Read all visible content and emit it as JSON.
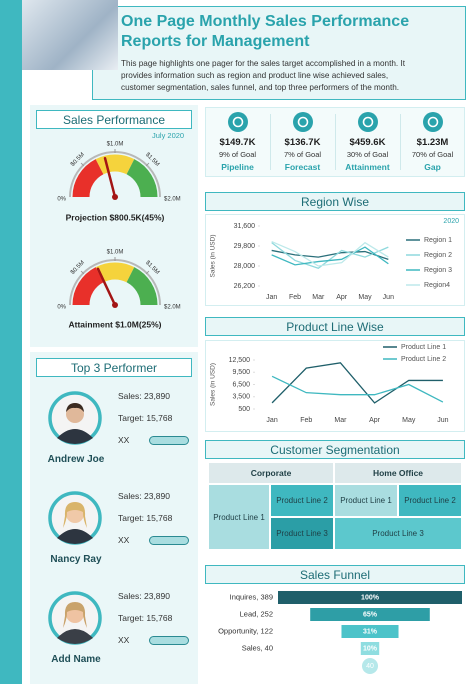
{
  "header": {
    "title": [
      "One Page Monthly Sales Performance",
      "Reports for Management"
    ],
    "description": [
      "This page highlights one pager for the sales target accomplished in a month. It",
      "provides information such as region and product line wise achieved sales,",
      "customer segmentation, sales funnel, and top three performers of the month."
    ]
  },
  "sales_performance": {
    "title": "Sales Performance",
    "period": "July 2020",
    "gauges": [
      {
        "scale": [
          "0%",
          "$0.5M",
          "$1.0M",
          "$1.5M",
          "$2.0M"
        ],
        "caption": "Projection $800.5K(45%)"
      },
      {
        "scale": [
          "0%",
          "$0.5M",
          "$1.0M",
          "$1.5M",
          "$2.0M"
        ],
        "caption": "Attainment $1.0M(25%)"
      }
    ]
  },
  "kpis": [
    {
      "value": "$149.7K",
      "goal": "9% of Goal",
      "label": "Pipeline"
    },
    {
      "value": "$136.7K",
      "goal": "7% of Goal",
      "label": "Forecast"
    },
    {
      "value": "$459.6K",
      "goal": "30% of Goal",
      "label": "Attainment"
    },
    {
      "value": "$1.23M",
      "goal": "70% of Goal",
      "label": "Gap"
    }
  ],
  "top_performers": {
    "title": "Top 3 Performer",
    "people": [
      {
        "name": "Andrew Joe",
        "sales": "Sales: 23,890",
        "target": "Target: 15,768",
        "note": "XX"
      },
      {
        "name": "Nancy Ray",
        "sales": "Sales: 23,890",
        "target": "Target: 15,768",
        "note": "XX"
      },
      {
        "name": "Add Name",
        "sales": "Sales: 23,890",
        "target": "Target: 15,768",
        "note": "XX"
      }
    ]
  },
  "customer_segmentation": {
    "title": "Customer Segmentation",
    "headers": [
      "Corporate",
      "Home Office"
    ],
    "cells": [
      "Product Line 1",
      "Product Line 2",
      "Product Line 3",
      "Product Line 1",
      "Product Line 2",
      "Product Line 3"
    ]
  },
  "chart_data": [
    {
      "type": "line",
      "title": "Region Wise",
      "subtitle": "2020",
      "ylabel": "Sales (in USD)",
      "categories": [
        "Jan",
        "Feb",
        "Mar",
        "Apr",
        "May",
        "Jun"
      ],
      "ylim": [
        26200,
        31600
      ],
      "yticks": [
        {
          "value": 26200,
          "label": "26,200"
        },
        {
          "value": 28000,
          "label": "28,000"
        },
        {
          "value": 29800,
          "label": "29,800"
        },
        {
          "value": 31600,
          "label": "31,600"
        }
      ],
      "grid": false,
      "legend": "right",
      "series": [
        {
          "name": "Region 1",
          "color": "#2a6f7a",
          "values": [
            29400,
            29000,
            28800,
            29200,
            29300,
            28600
          ]
        },
        {
          "name": "Region 2",
          "color": "#8fd9dd",
          "values": [
            30100,
            28500,
            27800,
            29400,
            28800,
            29700
          ]
        },
        {
          "name": "Region 3",
          "color": "#3fb8c0",
          "values": [
            29000,
            28100,
            28400,
            28600,
            29700,
            28200
          ]
        },
        {
          "name": "Region4",
          "color": "#bde9ea",
          "values": [
            30200,
            29300,
            28000,
            28300,
            30100,
            28800
          ]
        }
      ]
    },
    {
      "type": "line",
      "title": "Product Line Wise",
      "ylabel": "Sales (in USD)",
      "categories": [
        "Jan",
        "Feb",
        "Mar",
        "Apr",
        "May",
        "Jun"
      ],
      "ylim": [
        500,
        12500
      ],
      "yticks": [
        500,
        {
          "value": 3500,
          "label": "3,500"
        },
        {
          "value": 6500,
          "label": "6,500"
        },
        {
          "value": 9500,
          "label": "9,500"
        },
        {
          "value": 12500,
          "label": "12,500"
        }
      ],
      "grid": false,
      "legend": "top-right",
      "series": [
        {
          "name": "Product Line 1",
          "color": "#1f5f6a",
          "values": [
            2000,
            10500,
            11800,
            2000,
            7500,
            7500
          ]
        },
        {
          "name": "Product Line 2",
          "color": "#3fb8c0",
          "values": [
            8500,
            4500,
            4000,
            4000,
            6500,
            2200
          ]
        }
      ]
    },
    {
      "type": "funnel",
      "title": "Sales Funnel",
      "categories": [
        "Inquires, 389",
        "Lead, 252",
        "Opportunity, 122",
        "Sales, 40"
      ],
      "values": [
        100,
        65,
        31,
        10
      ],
      "value_labels": [
        "100%",
        "65%",
        "31%",
        "10%"
      ],
      "xlim": [
        0,
        100
      ],
      "colors": [
        "#1f5f6a",
        "#2e9ea6",
        "#4cc3c9",
        "#8fdde0"
      ],
      "end_label": "40"
    }
  ]
}
